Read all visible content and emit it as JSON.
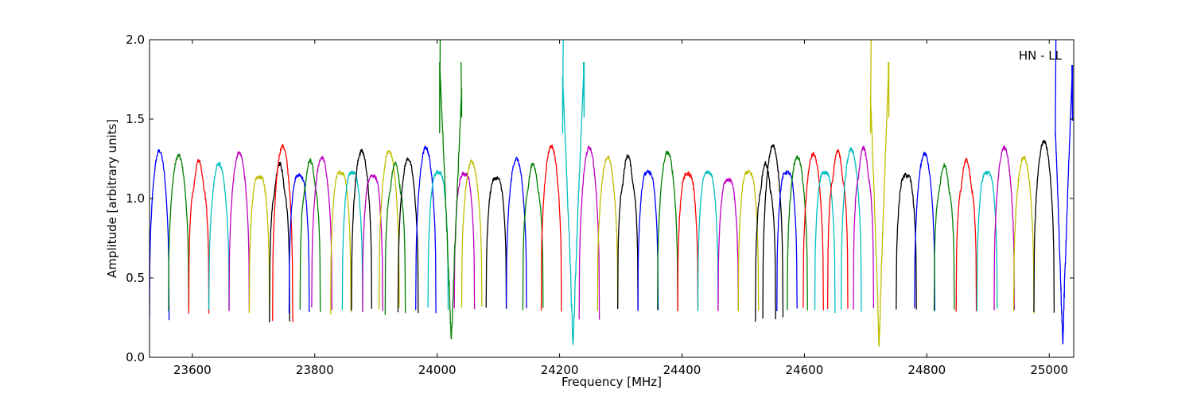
{
  "chart_data": {
    "type": "line",
    "title": "",
    "annotation": "HN - LL",
    "xlabel": "Frequency [MHz]",
    "ylabel": "Amplitude [arbitrary units]",
    "xlim": [
      23530,
      25040
    ],
    "ylim": [
      0.0,
      2.0
    ],
    "x_ticks": [
      23600,
      23800,
      24000,
      24200,
      24400,
      24600,
      24800,
      25000
    ],
    "y_ticks": [
      0.0,
      0.5,
      1.0,
      1.5,
      2.0
    ],
    "x_tick_labels": [
      "23600",
      "23800",
      "24000",
      "24200",
      "24400",
      "24600",
      "24800",
      "25000"
    ],
    "y_tick_labels": [
      "0.0",
      "0.5",
      "1.0",
      "1.5",
      "2.0"
    ],
    "grid": false,
    "colors": [
      "#0000ff",
      "#008000",
      "#ff0000",
      "#00bfbf",
      "#bf00bf",
      "#bfbf00",
      "#000000"
    ],
    "bands": [
      {
        "x0": 23530,
        "x1": 23562,
        "peak": 1.3,
        "low": 0.24,
        "color": "#0000ff",
        "kind": "bump"
      },
      {
        "x0": 23561,
        "x1": 23594,
        "peak": 1.27,
        "low": 0.3,
        "color": "#008000",
        "kind": "bump"
      },
      {
        "x0": 23594,
        "x1": 23627,
        "peak": 1.24,
        "low": 0.28,
        "color": "#ff0000",
        "kind": "double"
      },
      {
        "x0": 23627,
        "x1": 23660,
        "peak": 1.22,
        "low": 0.29,
        "color": "#00bfbf",
        "kind": "bump"
      },
      {
        "x0": 23660,
        "x1": 23693,
        "peak": 1.29,
        "low": 0.29,
        "color": "#bf00bf",
        "kind": "bump"
      },
      {
        "x0": 23693,
        "x1": 23726,
        "peak": 1.19,
        "low": 0.28,
        "color": "#bfbf00",
        "kind": "flat"
      },
      {
        "x0": 23726,
        "x1": 23759,
        "peak": 1.22,
        "low": 0.23,
        "color": "#000000",
        "kind": "double"
      },
      {
        "x0": 23731,
        "x1": 23764,
        "peak": 1.33,
        "low": 0.23,
        "color": "#ff0000",
        "kind": "bump"
      },
      {
        "x0": 23758,
        "x1": 23791,
        "peak": 1.2,
        "low": 0.29,
        "color": "#0000ff",
        "kind": "flat"
      },
      {
        "x0": 23776,
        "x1": 23809,
        "peak": 1.24,
        "low": 0.29,
        "color": "#008000",
        "kind": "double"
      },
      {
        "x0": 23795,
        "x1": 23828,
        "peak": 1.26,
        "low": 0.31,
        "color": "#bf00bf",
        "kind": "bump"
      },
      {
        "x0": 23826,
        "x1": 23859,
        "peak": 1.22,
        "low": 0.28,
        "color": "#bfbf00",
        "kind": "flat"
      },
      {
        "x0": 23845,
        "x1": 23878,
        "peak": 1.22,
        "low": 0.29,
        "color": "#00bfbf",
        "kind": "flat"
      },
      {
        "x0": 23860,
        "x1": 23893,
        "peak": 1.3,
        "low": 0.3,
        "color": "#000000",
        "kind": "bump"
      },
      {
        "x0": 23878,
        "x1": 23911,
        "peak": 1.2,
        "low": 0.28,
        "color": "#bf00bf",
        "kind": "flat"
      },
      {
        "x0": 23905,
        "x1": 23938,
        "peak": 1.3,
        "low": 0.31,
        "color": "#bfbf00",
        "kind": "bump"
      },
      {
        "x0": 23915,
        "x1": 23948,
        "peak": 1.22,
        "low": 0.28,
        "color": "#008000",
        "kind": "double"
      },
      {
        "x0": 23936,
        "x1": 23969,
        "peak": 1.25,
        "low": 0.28,
        "color": "#000000",
        "kind": "bump"
      },
      {
        "x0": 23965,
        "x1": 23998,
        "peak": 1.32,
        "low": 0.29,
        "color": "#0000ff",
        "kind": "bump"
      },
      {
        "x0": 23985,
        "x1": 24018,
        "peak": 1.22,
        "low": 0.31,
        "color": "#00bfbf",
        "kind": "flat"
      },
      {
        "x0": 24028,
        "x1": 24061,
        "peak": 1.21,
        "low": 0.3,
        "color": "#bf00bf",
        "kind": "flat"
      },
      {
        "x0": 24040,
        "x1": 24073,
        "peak": 1.23,
        "low": 0.32,
        "color": "#bfbf00",
        "kind": "bump"
      },
      {
        "x0": 24080,
        "x1": 24113,
        "peak": 1.18,
        "low": 0.3,
        "color": "#000000",
        "kind": "flat"
      },
      {
        "x0": 24113,
        "x1": 24146,
        "peak": 1.25,
        "low": 0.3,
        "color": "#0000ff",
        "kind": "bump"
      },
      {
        "x0": 24140,
        "x1": 24173,
        "peak": 1.22,
        "low": 0.3,
        "color": "#008000",
        "kind": "double"
      },
      {
        "x0": 24170,
        "x1": 24203,
        "peak": 1.33,
        "low": 0.3,
        "color": "#ff0000",
        "kind": "bump"
      },
      {
        "x0": 24232,
        "x1": 24265,
        "peak": 1.32,
        "low": 0.23,
        "color": "#bf00bf",
        "kind": "bump"
      },
      {
        "x0": 24262,
        "x1": 24295,
        "peak": 1.26,
        "low": 0.3,
        "color": "#bfbf00",
        "kind": "bump"
      },
      {
        "x0": 24295,
        "x1": 24328,
        "peak": 1.27,
        "low": 0.3,
        "color": "#000000",
        "kind": "double"
      },
      {
        "x0": 24328,
        "x1": 24361,
        "peak": 1.22,
        "low": 0.29,
        "color": "#0000ff",
        "kind": "flat"
      },
      {
        "x0": 24360,
        "x1": 24393,
        "peak": 1.29,
        "low": 0.29,
        "color": "#008000",
        "kind": "bump"
      },
      {
        "x0": 24393,
        "x1": 24426,
        "peak": 1.21,
        "low": 0.29,
        "color": "#ff0000",
        "kind": "flat"
      },
      {
        "x0": 24426,
        "x1": 24459,
        "peak": 1.22,
        "low": 0.3,
        "color": "#00bfbf",
        "kind": "flat"
      },
      {
        "x0": 24459,
        "x1": 24492,
        "peak": 1.17,
        "low": 0.29,
        "color": "#bf00bf",
        "kind": "flat"
      },
      {
        "x0": 24492,
        "x1": 24525,
        "peak": 1.22,
        "low": 0.3,
        "color": "#bfbf00",
        "kind": "flat"
      },
      {
        "x0": 24520,
        "x1": 24553,
        "peak": 1.22,
        "low": 0.23,
        "color": "#000000",
        "kind": "double"
      },
      {
        "x0": 24532,
        "x1": 24565,
        "peak": 1.33,
        "low": 0.24,
        "color": "#000000",
        "kind": "bump"
      },
      {
        "x0": 24555,
        "x1": 24588,
        "peak": 1.22,
        "low": 0.3,
        "color": "#0000ff",
        "kind": "flat"
      },
      {
        "x0": 24572,
        "x1": 24605,
        "peak": 1.26,
        "low": 0.3,
        "color": "#008000",
        "kind": "bump"
      },
      {
        "x0": 24598,
        "x1": 24631,
        "peak": 1.28,
        "low": 0.3,
        "color": "#ff0000",
        "kind": "bump"
      },
      {
        "x0": 24617,
        "x1": 24650,
        "peak": 1.22,
        "low": 0.29,
        "color": "#00bfbf",
        "kind": "flat"
      },
      {
        "x0": 24638,
        "x1": 24671,
        "peak": 1.3,
        "low": 0.3,
        "color": "#ff0000",
        "kind": "double"
      },
      {
        "x0": 24660,
        "x1": 24693,
        "peak": 1.31,
        "low": 0.29,
        "color": "#00bfbf",
        "kind": "bump"
      },
      {
        "x0": 24680,
        "x1": 24713,
        "peak": 1.32,
        "low": 0.3,
        "color": "#bf00bf",
        "kind": "double"
      },
      {
        "x0": 24750,
        "x1": 24783,
        "peak": 1.2,
        "low": 0.3,
        "color": "#000000",
        "kind": "flat"
      },
      {
        "x0": 24780,
        "x1": 24813,
        "peak": 1.28,
        "low": 0.3,
        "color": "#0000ff",
        "kind": "bump"
      },
      {
        "x0": 24812,
        "x1": 24845,
        "peak": 1.21,
        "low": 0.3,
        "color": "#008000",
        "kind": "double"
      },
      {
        "x0": 24848,
        "x1": 24881,
        "peak": 1.24,
        "low": 0.3,
        "color": "#ff0000",
        "kind": "double"
      },
      {
        "x0": 24882,
        "x1": 24915,
        "peak": 1.22,
        "low": 0.3,
        "color": "#00bfbf",
        "kind": "flat"
      },
      {
        "x0": 24910,
        "x1": 24943,
        "peak": 1.32,
        "low": 0.3,
        "color": "#bf00bf",
        "kind": "bump"
      },
      {
        "x0": 24942,
        "x1": 24975,
        "peak": 1.26,
        "low": 0.28,
        "color": "#bfbf00",
        "kind": "bump"
      },
      {
        "x0": 24975,
        "x1": 25008,
        "peak": 1.36,
        "low": 0.29,
        "color": "#000000",
        "kind": "bump"
      }
    ],
    "features": [
      {
        "center": 24023,
        "color": "#008000",
        "dip": 0.05,
        "spike_left": 24004,
        "spike_right": 24040,
        "spike_height": 1.86
      },
      {
        "center": 24222,
        "color": "#00bfbf",
        "dip": 0.04,
        "spike_left": 24205,
        "spike_right": 24240,
        "spike_height": 1.86
      },
      {
        "center": 24722,
        "color": "#bfbf00",
        "dip": 0.04,
        "spike_left": 24708,
        "spike_right": 24738,
        "spike_height": 1.86
      },
      {
        "center": 25022,
        "color": "#0000ff",
        "dip": 0.05,
        "spike_left": 25010,
        "spike_right": 25038,
        "spike_height": 1.84
      }
    ]
  }
}
